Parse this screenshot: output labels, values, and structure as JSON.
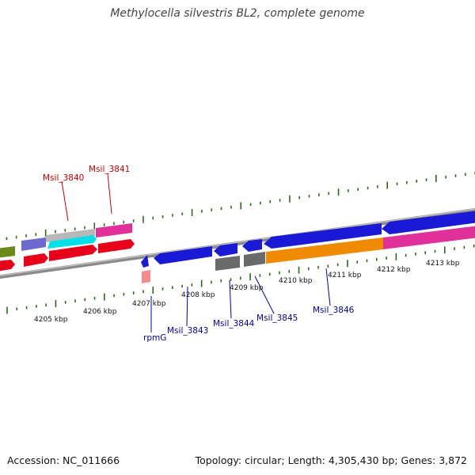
{
  "title": "Methylocella silvestris BL2, complete genome",
  "accession_text": "Accession: NC_011666",
  "summary_text": "Topology: circular; Length: 4,305,430 bp; Genes: 3,872",
  "scale_labels": [
    "4205 kbp",
    "4206 kbp",
    "4207 kbp",
    "4208 kbp",
    "4209 kbp",
    "4210 kbp",
    "4211 kbp",
    "4212 kbp",
    "4213 kbp"
  ],
  "gene_labels": {
    "msil_3840": "Msil_3840",
    "msil_3841": "Msil_3841",
    "rpmg": "rpmG",
    "msil_3843": "Msil_3843",
    "msil_3844": "Msil_3844",
    "msil_3845": "Msil_3845",
    "msil_3846": "Msil_3846"
  },
  "colors": {
    "upper_label": "#cc0000",
    "lower_label": "#0000aa",
    "tick": "#2a6b14",
    "backbone": "#8a8a8a",
    "blue_gene": "#1a1ad6",
    "red_gene": "#e8001a",
    "magenta_gene": "#e0309a",
    "orange_gene": "#f08a00",
    "gray_gene": "#6a6a6a",
    "olive_gene": "#6b8a1a",
    "purple_gene": "#6a6ad0",
    "cyan_gene": "#00e0e6",
    "silver_gene": "#b8b8b8",
    "pink_gene": "#f28c8c"
  }
}
